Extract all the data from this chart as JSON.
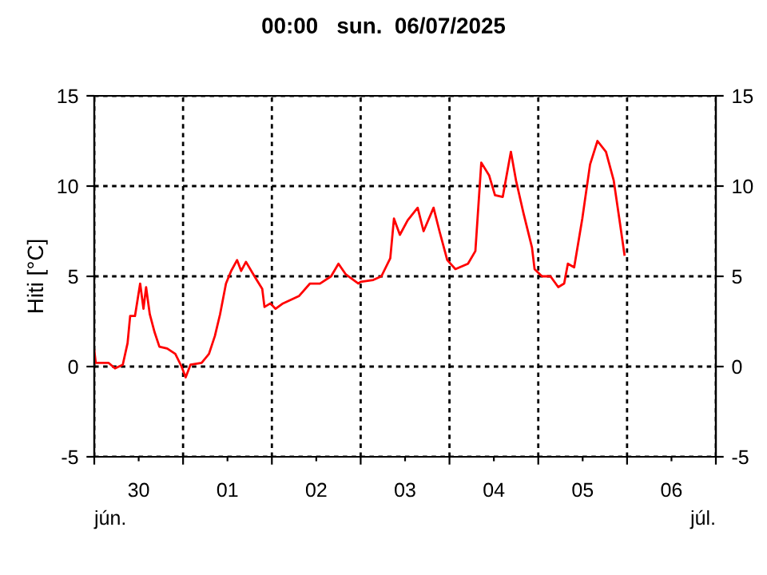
{
  "chart_data": {
    "type": "line",
    "title": "00:00   sun.  06/07/2025",
    "ylabel": "Hiti [°C]",
    "x": [
      "2025-06-30T00:00",
      "2025-06-30T00:24",
      "2025-06-30T03:54",
      "2025-06-30T05:36",
      "2025-06-30T07:42",
      "2025-06-30T09:00",
      "2025-06-30T09:42",
      "2025-06-30T11:00",
      "2025-06-30T12:24",
      "2025-06-30T13:18",
      "2025-06-30T14:00",
      "2025-06-30T15:00",
      "2025-06-30T16:18",
      "2025-06-30T17:36",
      "2025-06-30T19:42",
      "2025-06-30T21:54",
      "2025-06-30T23:36",
      "2025-07-01T00:42",
      "2025-07-01T02:00",
      "2025-07-01T05:00",
      "2025-07-01T07:00",
      "2025-07-01T08:36",
      "2025-07-01T10:00",
      "2025-07-01T11:36",
      "2025-07-01T13:00",
      "2025-07-01T14:36",
      "2025-07-01T15:42",
      "2025-07-01T17:00",
      "2025-07-01T19:18",
      "2025-07-01T21:24",
      "2025-07-01T22:00",
      "2025-07-01T23:36",
      "2025-07-02T01:00",
      "2025-07-02T03:00",
      "2025-07-02T07:18",
      "2025-07-02T10:18",
      "2025-07-02T13:00",
      "2025-07-02T16:00",
      "2025-07-02T18:00",
      "2025-07-02T20:00",
      "2025-07-02T23:24",
      "2025-07-03T00:00",
      "2025-07-03T03:24",
      "2025-07-03T05:36",
      "2025-07-03T08:00",
      "2025-07-03T09:00",
      "2025-07-03T10:36",
      "2025-07-03T12:42",
      "2025-07-03T15:24",
      "2025-07-03T17:00",
      "2025-07-03T19:42",
      "2025-07-03T21:18",
      "2025-07-03T23:24",
      "2025-07-04T01:36",
      "2025-07-04T05:00",
      "2025-07-04T07:00",
      "2025-07-04T08:36",
      "2025-07-04T10:42",
      "2025-07-04T12:18",
      "2025-07-04T14:24",
      "2025-07-04T16:36",
      "2025-07-04T18:00",
      "2025-07-04T20:00",
      "2025-07-04T22:18",
      "2025-07-04T23:00",
      "2025-07-05T01:00",
      "2025-07-05T03:18",
      "2025-07-05T05:24",
      "2025-07-05T07:00",
      "2025-07-05T08:00",
      "2025-07-05T09:42",
      "2025-07-05T11:54",
      "2025-07-05T14:00",
      "2025-07-05T16:00",
      "2025-07-05T18:18",
      "2025-07-05T20:24",
      "2025-07-05T21:54",
      "2025-07-05T23:18"
    ],
    "series": [
      {
        "color": "#ff0000",
        "values": [
          0.9,
          0.2,
          0.2,
          -0.1,
          0.1,
          1.3,
          2.8,
          2.8,
          4.6,
          3.2,
          4.4,
          2.9,
          1.9,
          1.1,
          1.0,
          0.7,
          0,
          -0.6,
          0.1,
          0.2,
          0.7,
          1.7,
          2.9,
          4.6,
          5.3,
          5.9,
          5.3,
          5.8,
          5.0,
          4.3,
          3.3,
          3.5,
          3.2,
          3.5,
          3.9,
          4.6,
          4.6,
          5.0,
          5.7,
          5.1,
          4.6,
          4.7,
          4.8,
          5.0,
          6.0,
          8.2,
          7.3,
          8.1,
          8.8,
          7.5,
          8.8,
          7.5,
          5.9,
          5.4,
          5.7,
          6.4,
          11.3,
          10.6,
          9.5,
          9.4,
          11.9,
          10.3,
          8.5,
          6.6,
          5.4,
          5.0,
          5.0,
          4.4,
          4.6,
          5.7,
          5.5,
          8.2,
          11.2,
          12.5,
          11.9,
          10.3,
          8.2,
          6.2
        ]
      }
    ],
    "xlim": [
      "2025-06-30T00:00",
      "2025-07-07T00:00"
    ],
    "ylim": [
      -5,
      15
    ],
    "yticks": [
      -5,
      0,
      5,
      10,
      15
    ],
    "y2lim": [
      -5,
      15
    ],
    "y2ticks": [
      -5,
      0,
      5,
      10,
      15
    ],
    "xticks": [
      {
        "value": "2025-06-30T00:00",
        "label": null
      },
      {
        "value": "2025-06-30T12:00",
        "label": "30"
      },
      {
        "value": "2025-07-01T00:00",
        "label": null
      },
      {
        "value": "2025-07-01T12:00",
        "label": "01"
      },
      {
        "value": "2025-07-02T00:00",
        "label": null
      },
      {
        "value": "2025-07-02T12:00",
        "label": "02"
      },
      {
        "value": "2025-07-03T00:00",
        "label": null
      },
      {
        "value": "2025-07-03T12:00",
        "label": "03"
      },
      {
        "value": "2025-07-04T00:00",
        "label": null
      },
      {
        "value": "2025-07-04T12:00",
        "label": "04"
      },
      {
        "value": "2025-07-05T00:00",
        "label": null
      },
      {
        "value": "2025-07-05T12:00",
        "label": "05"
      },
      {
        "value": "2025-07-06T00:00",
        "label": null
      },
      {
        "value": "2025-07-06T12:00",
        "label": "06"
      },
      {
        "value": "2025-07-07T00:00",
        "label": null
      }
    ],
    "annotations": [
      "jún.",
      "júl."
    ],
    "grid": true,
    "line_style": "solid"
  }
}
